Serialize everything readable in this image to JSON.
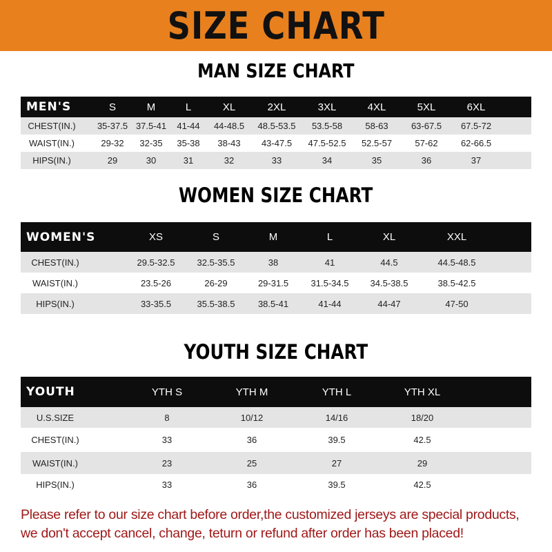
{
  "banner_title": "SIZE CHART",
  "colors": {
    "banner": "#e8801e",
    "header_row": "#0d0d0d",
    "stripe": "#e4e4e4",
    "note": "#a01818"
  },
  "men": {
    "title": "MAN SIZE CHART",
    "header": [
      "MEN'S",
      "S",
      "M",
      "L",
      "XL",
      "2XL",
      "3XL",
      "4XL",
      "5XL",
      "6XL"
    ],
    "rows": [
      [
        "CHEST(IN.)",
        "35-37.5",
        "37.5-41",
        "41-44",
        "44-48.5",
        "48.5-53.5",
        "53.5-58",
        "58-63",
        "63-67.5",
        "67.5-72"
      ],
      [
        "WAIST(IN.)",
        "29-32",
        "32-35",
        "35-38",
        "38-43",
        "43-47.5",
        "47.5-52.5",
        "52.5-57",
        "57-62",
        "62-66.5"
      ],
      [
        "HIPS(IN.)",
        "29",
        "30",
        "31",
        "32",
        "33",
        "34",
        "35",
        "36",
        "37"
      ]
    ]
  },
  "women": {
    "title": "WOMEN SIZE CHART",
    "header": [
      "WOMEN'S",
      "XS",
      "S",
      "M",
      "L",
      "XL",
      "XXL"
    ],
    "rows": [
      [
        "CHEST(IN.)",
        "29.5-32.5",
        "32.5-35.5",
        "38",
        "41",
        "44.5",
        "44.5-48.5"
      ],
      [
        "WAIST(IN.)",
        "23.5-26",
        "26-29",
        "29-31.5",
        "31.5-34.5",
        "34.5-38.5",
        "38.5-42.5"
      ],
      [
        "HIPS(IN.)",
        "33-35.5",
        "35.5-38.5",
        "38.5-41",
        "41-44",
        "44-47",
        "47-50"
      ]
    ]
  },
  "youth": {
    "title": "YOUTH SIZE CHART",
    "header": [
      "YOUTH",
      "YTH S",
      "YTH M",
      "YTH L",
      "YTH XL"
    ],
    "rows": [
      [
        "U.S.SIZE",
        "8",
        "10/12",
        "14/16",
        "18/20"
      ],
      [
        "CHEST(IN.)",
        "33",
        "36",
        "39.5",
        "42.5"
      ],
      [
        "WAIST(IN.)",
        "23",
        "25",
        "27",
        "29"
      ],
      [
        "HIPS(IN.)",
        "33",
        "36",
        "39.5",
        "42.5"
      ]
    ]
  },
  "note": {
    "line1": "Please refer to our size chart before order,the customized jerseys are special products,",
    "line2": "we don't accept cancel, change, teturn or refund after order has been placed!"
  }
}
